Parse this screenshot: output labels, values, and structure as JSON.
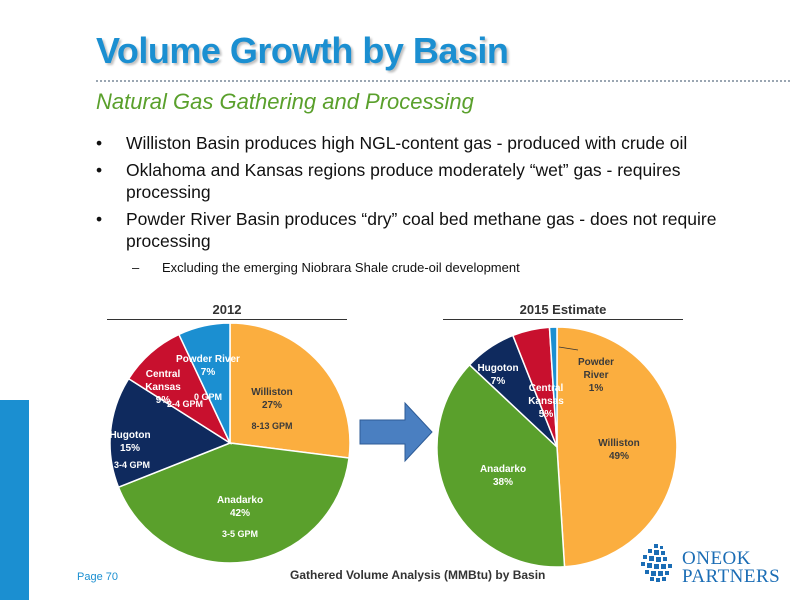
{
  "slide": {
    "title": "Volume Growth by Basin",
    "subtitle": "Natural Gas Gathering and Processing",
    "bullets": [
      "Williston Basin produces high NGL-content gas - produced with crude oil",
      "Oklahoma and Kansas regions produce moderately “wet” gas - requires processing",
      "Powder River Basin produces “dry” coal bed methane gas - does not require processing"
    ],
    "bullet_symbol": "•",
    "subbullet_symbol": "–",
    "subbullet": "Excluding the emerging Niobrara Shale crude-oil development",
    "footer_page": "Page 70",
    "footer_caption": "Gathered Volume Analysis (MMBtu) by Basin",
    "logo_line1": "ONEOK",
    "logo_line2": "PARTNERS",
    "logo_icon": "oneok-grid-logo-icon",
    "arrow_icon": "right-arrow-icon"
  },
  "colors": {
    "williston": "#fbae3f",
    "anadarko": "#5aa02c",
    "hugoton": "#0f2a5e",
    "central_kansas": "#c8102e",
    "powder_river": "#1b8fd1",
    "title": "#1b8fd1",
    "subtitle": "#5aa02c",
    "arrow": "#4a7fc1"
  },
  "chart_data": [
    {
      "type": "pie",
      "title": "2012",
      "slices": [
        {
          "name": "Williston",
          "value": 27,
          "pct_label": "27%",
          "note": "8-13 GPM",
          "color": "#fbae3f"
        },
        {
          "name": "Anadarko",
          "value": 42,
          "pct_label": "42%",
          "note": "3-5 GPM",
          "color": "#5aa02c"
        },
        {
          "name": "Hugoton",
          "value": 15,
          "pct_label": "15%",
          "note": "3-4 GPM",
          "color": "#0f2a5e"
        },
        {
          "name": "Central Kansas",
          "value": 9,
          "pct_label": "9%",
          "note": "2-4 GPM",
          "color": "#c8102e"
        },
        {
          "name": "Powder River",
          "value": 7,
          "pct_label": "7%",
          "note": "0 GPM",
          "color": "#1b8fd1"
        }
      ]
    },
    {
      "type": "pie",
      "title": "2015 Estimate",
      "slices": [
        {
          "name": "Williston",
          "value": 49,
          "pct_label": "49%",
          "note": "",
          "color": "#fbae3f"
        },
        {
          "name": "Anadarko",
          "value": 38,
          "pct_label": "38%",
          "note": "",
          "color": "#5aa02c"
        },
        {
          "name": "Hugoton",
          "value": 7,
          "pct_label": "7%",
          "note": "",
          "color": "#0f2a5e"
        },
        {
          "name": "Central Kansas",
          "value": 5,
          "pct_label": "5%",
          "note": "",
          "color": "#c8102e"
        },
        {
          "name": "Powder River",
          "value": 1,
          "pct_label": "1%",
          "note": "",
          "color": "#1b8fd1"
        }
      ]
    }
  ]
}
